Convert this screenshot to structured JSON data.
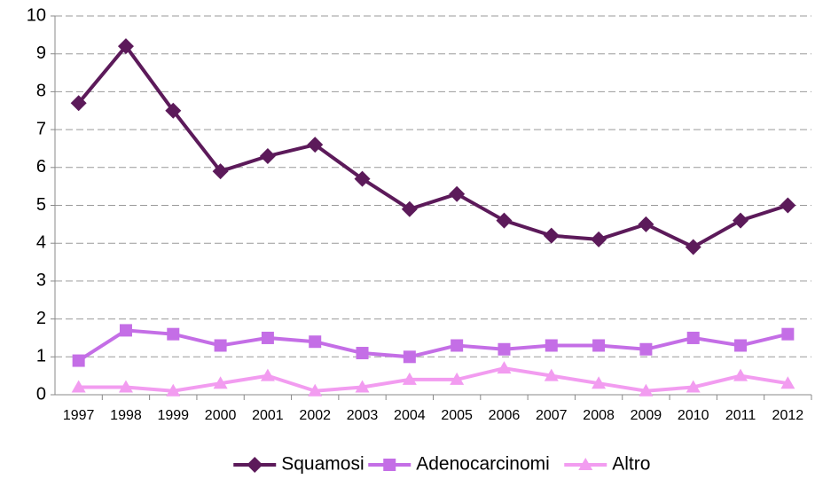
{
  "chart_data": {
    "type": "line",
    "categories": [
      "1997",
      "1998",
      "1999",
      "2000",
      "2001",
      "2002",
      "2003",
      "2004",
      "2005",
      "2006",
      "2007",
      "2008",
      "2009",
      "2010",
      "2011",
      "2012"
    ],
    "series": [
      {
        "name": "Squamosi",
        "color": "#5c1a5a",
        "marker": "diamond",
        "values": [
          7.7,
          9.2,
          7.5,
          5.9,
          6.3,
          6.6,
          5.7,
          4.9,
          5.3,
          4.6,
          4.2,
          4.1,
          4.5,
          3.9,
          4.6,
          5.0
        ]
      },
      {
        "name": "Adenocarcinomi",
        "color": "#c46ee6",
        "marker": "square",
        "values": [
          0.9,
          1.7,
          1.6,
          1.3,
          1.5,
          1.4,
          1.1,
          1.0,
          1.3,
          1.2,
          1.3,
          1.3,
          1.2,
          1.5,
          1.3,
          1.6
        ]
      },
      {
        "name": "Altro",
        "color": "#f29cf0",
        "marker": "triangle",
        "values": [
          0.2,
          0.2,
          0.1,
          0.3,
          0.5,
          0.1,
          0.2,
          0.4,
          0.4,
          0.7,
          0.5,
          0.3,
          0.1,
          0.2,
          0.5,
          0.3
        ]
      }
    ],
    "ylim": [
      0,
      10
    ],
    "yticks": [
      0,
      1,
      2,
      3,
      4,
      5,
      6,
      7,
      8,
      9,
      10
    ],
    "grid": true,
    "legend": "bottom"
  }
}
